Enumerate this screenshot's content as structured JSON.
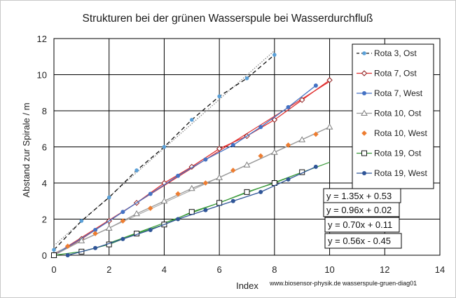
{
  "chart_data": {
    "type": "scatter",
    "title": "Strukturen bei der grünen Wasserspule bei Wasserdurchfluß",
    "xlabel": "Index",
    "ylabel": "Abstand zur Spirale / m",
    "xlim": [
      0,
      14
    ],
    "ylim": [
      0,
      12
    ],
    "x_ticks": [
      "0",
      "2",
      "4",
      "6",
      "8",
      "10",
      "12",
      "14"
    ],
    "y_ticks": [
      "0",
      "2",
      "4",
      "6",
      "8",
      "10",
      "12"
    ],
    "grid": true,
    "legend_position": "right",
    "footer": "www.biosensor-physik.de  wasserspule-gruen-diag01",
    "series": [
      {
        "name": "Rota 3, Ost",
        "color": "#5aa0d8",
        "marker": "dot-small",
        "line": "dash-black",
        "x": [
          0,
          1,
          2,
          3,
          4,
          5,
          6,
          7,
          8
        ],
        "y": [
          0.3,
          1.9,
          3.2,
          4.7,
          6.0,
          7.5,
          8.8,
          9.8,
          11.1
        ]
      },
      {
        "name": "Rota 7, Ost",
        "color": "#8b1a1a",
        "marker": "diamond-open",
        "line": "solid-red",
        "x": [
          0,
          1,
          2,
          3,
          4,
          5,
          6,
          7,
          8,
          9,
          10
        ],
        "y": [
          0,
          0.9,
          1.9,
          2.9,
          4.0,
          4.9,
          5.9,
          6.6,
          7.5,
          8.6,
          9.7
        ]
      },
      {
        "name": "Rota 7, West",
        "color": "#4472c4",
        "marker": "dot",
        "line": "solid-blue",
        "x": [
          0,
          1.5,
          2.5,
          3.5,
          4.5,
          5.5,
          6.5,
          7.5,
          8.5,
          9.5
        ],
        "y": [
          0,
          1.4,
          2.4,
          3.4,
          4.4,
          5.3,
          6.1,
          7.1,
          8.2,
          9.4
        ]
      },
      {
        "name": "Rota 10, Ost",
        "color": "#7f7f7f",
        "marker": "triangle-open",
        "line": "solid-gray",
        "x": [
          0,
          1,
          2,
          3,
          4,
          5,
          6,
          7,
          8,
          9,
          10
        ],
        "y": [
          0,
          0.8,
          1.5,
          2.3,
          3.0,
          3.7,
          4.3,
          5.0,
          5.7,
          6.4,
          7.1
        ]
      },
      {
        "name": "Rota 10, West",
        "color": "#ed7d31",
        "marker": "diamond-filled",
        "line": "none",
        "x": [
          0.5,
          1.5,
          2.5,
          3.5,
          4.5,
          5.5,
          6.5,
          7.5,
          8.5,
          9.5
        ],
        "y": [
          0.5,
          1.2,
          1.9,
          2.6,
          3.4,
          4.0,
          4.7,
          5.5,
          6.1,
          6.7
        ]
      },
      {
        "name": "Rota 19, Ost",
        "color": "#111111",
        "marker": "square-open",
        "line": "solid-green",
        "x": [
          0,
          1,
          2,
          3,
          4,
          5,
          6,
          7,
          8,
          9
        ],
        "y": [
          0,
          0.2,
          0.6,
          1.2,
          1.7,
          2.4,
          2.9,
          3.5,
          4.0,
          4.6
        ]
      },
      {
        "name": "Rota 19, West",
        "color": "#2f5597",
        "marker": "dot",
        "line": "solid-navy",
        "x": [
          0.5,
          1.5,
          2.5,
          3.5,
          4.5,
          5.5,
          6.5,
          7.5,
          8.5,
          9.5
        ],
        "y": [
          0,
          0.4,
          0.9,
          1.4,
          2.0,
          2.5,
          3.0,
          3.5,
          4.2,
          4.9
        ]
      }
    ],
    "trendlines": [
      {
        "equation": "y = 1.35x + 0.53",
        "slope": 1.35,
        "intercept": 0.53,
        "x_range": [
          0,
          8
        ],
        "color": "#808080",
        "style": "dotted"
      },
      {
        "equation": "y = 0.96x + 0.02",
        "slope": 0.96,
        "intercept": 0.02,
        "x_range": [
          0,
          10
        ],
        "color": "#e03030",
        "style": "solid"
      },
      {
        "equation": "y = 0.70x + 0.11",
        "slope": 0.7,
        "intercept": 0.11,
        "x_range": [
          0,
          10
        ],
        "color": "#aaaaaa",
        "style": "solid"
      },
      {
        "equation": "y = 0.56x - 0.45",
        "slope": 0.56,
        "intercept": -0.45,
        "x_range": [
          2,
          10
        ],
        "color": "#3a9a3a",
        "style": "solid"
      }
    ]
  }
}
